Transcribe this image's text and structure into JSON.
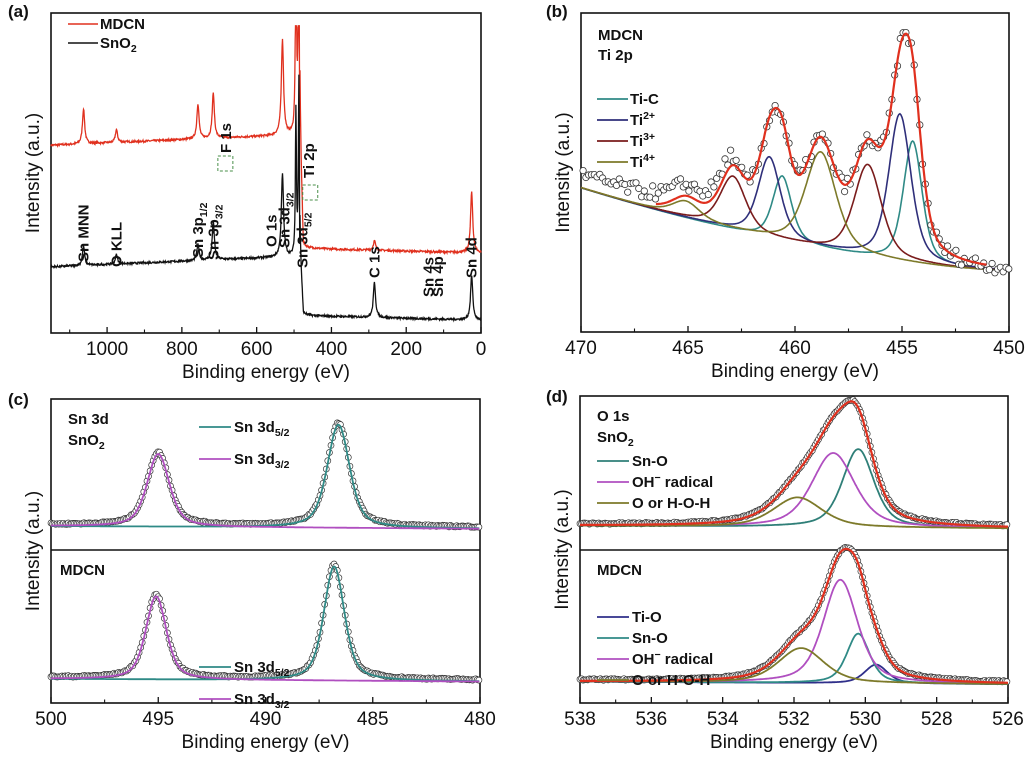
{
  "chart_data": [
    {
      "id": "a",
      "panel_label": "(a)",
      "type": "line",
      "title": "",
      "xlabel": "Binding energy (eV)",
      "ylabel": "Intensity (a.u.)",
      "xlim": [
        1150,
        0
      ],
      "xticks": [
        1000,
        800,
        600,
        400,
        200,
        0
      ],
      "xtick_labels": [
        "1000",
        "800",
        "600",
        "400",
        "200",
        "0"
      ],
      "legend": {
        "position": "top-left",
        "entries": [
          {
            "name": "MDCN",
            "color": "#e0301e"
          },
          {
            "name": "SnO2",
            "name_base": "SnO",
            "name_sub": "2",
            "color": "#111111"
          }
        ]
      },
      "series": [
        {
          "name": "MDCN",
          "color": "#e0301e",
          "baseline_high": 0.62,
          "baseline_low": 0.25,
          "step_energy": 485,
          "peaks": [
            {
              "x": 1063,
              "h": 0.11
            },
            {
              "x": 975,
              "h": 0.04
            },
            {
              "x": 757,
              "h": 0.11
            },
            {
              "x": 716,
              "h": 0.14
            },
            {
              "x": 531,
              "h": 0.3
            },
            {
              "x": 495,
              "h": 0.7
            },
            {
              "x": 487,
              "h": 0.93
            },
            {
              "x": 285,
              "h": 0.03
            },
            {
              "x": 25,
              "h": 0.19
            }
          ]
        },
        {
          "name": "SnO2",
          "color": "#111111",
          "baseline_high": 0.24,
          "baseline_low": 0.04,
          "step_energy": 485,
          "peaks": [
            {
              "x": 1063,
              "h": 0.06
            },
            {
              "x": 975,
              "h": 0.03
            },
            {
              "x": 757,
              "h": 0.05
            },
            {
              "x": 716,
              "h": 0.12
            },
            {
              "x": 531,
              "h": 0.26
            },
            {
              "x": 495,
              "h": 0.45
            },
            {
              "x": 487,
              "h": 0.55
            },
            {
              "x": 285,
              "h": 0.11
            },
            {
              "x": 25,
              "h": 0.14
            }
          ]
        }
      ],
      "annotations": [
        {
          "text": "Sn MNN",
          "x": 1063
        },
        {
          "text": "O KLL",
          "x": 975
        },
        {
          "text": "Sn 3p",
          "sub": "1/2",
          "x": 757
        },
        {
          "text": "Sn 3p",
          "sub": "3/2",
          "x": 716
        },
        {
          "text": "O 1s",
          "x": 560
        },
        {
          "text": "Sn 3d",
          "sub": "3/2",
          "x": 526
        },
        {
          "text": "Sn 3d",
          "sub": "5/2",
          "x": 478
        },
        {
          "text": "C 1s",
          "x": 285
        },
        {
          "text": "Sn 4s",
          "x": 140
        },
        {
          "text": "Sn 4p",
          "x": 115
        },
        {
          "text": "Sn 4d",
          "x": 25
        },
        {
          "text": "F 1s",
          "x": 682
        },
        {
          "text": "Ti 2p",
          "x": 460
        }
      ],
      "highlight_boxes": [
        {
          "label": "F 1s",
          "x": 685
        },
        {
          "label": "Ti 2p",
          "x": 458
        }
      ]
    },
    {
      "id": "b",
      "panel_label": "(b)",
      "type": "line",
      "title": "MDCN Ti 2p",
      "title_lines": [
        "MDCN",
        "Ti 2p"
      ],
      "xlabel": "Binding energy (eV)",
      "ylabel": "Intensity (a.u.)",
      "xlim": [
        470,
        450
      ],
      "xticks": [
        470,
        465,
        460,
        455,
        450
      ],
      "xtick_labels": [
        "470",
        "465",
        "460",
        "455",
        "450"
      ],
      "legend": {
        "position": "upper-left",
        "entries": [
          {
            "name": "Ti-C",
            "base": "Ti-C",
            "sup": "",
            "color": "#2f8a86"
          },
          {
            "name": "Ti2+",
            "base": "Ti",
            "sup": "2+",
            "color": "#2f2f7a"
          },
          {
            "name": "Ti3+",
            "base": "Ti",
            "sup": "3+",
            "color": "#7a1c1c"
          },
          {
            "name": "Ti4+",
            "base": "Ti",
            "sup": "4+",
            "color": "#7d7a2a"
          }
        ]
      },
      "background": {
        "start": 0.4,
        "end": 0.04
      },
      "components": [
        {
          "name": "Ti-C",
          "color": "#2f8a86",
          "peaks": [
            {
              "x": 454.5,
              "h": 0.53,
              "w": 0.55
            },
            {
              "x": 460.6,
              "h": 0.28,
              "w": 0.55
            }
          ]
        },
        {
          "name": "Ti2+",
          "color": "#2f2f7a",
          "peaks": [
            {
              "x": 455.1,
              "h": 0.64,
              "w": 0.65
            },
            {
              "x": 461.2,
              "h": 0.35,
              "w": 0.65
            }
          ]
        },
        {
          "name": "Ti3+",
          "color": "#7a1c1c",
          "peaks": [
            {
              "x": 456.6,
              "h": 0.4,
              "w": 0.8
            },
            {
              "x": 462.9,
              "h": 0.23,
              "w": 0.75
            }
          ]
        },
        {
          "name": "Ti4+",
          "color": "#7d7a2a",
          "peaks": [
            {
              "x": 458.8,
              "h": 0.42,
              "w": 0.9
            },
            {
              "x": 465.1,
              "h": 0.07,
              "w": 0.8
            }
          ]
        }
      ],
      "envelope_color": "#e0301e",
      "data_points_style": "open-circle",
      "ylim": [
        0,
        1
      ]
    },
    {
      "id": "c",
      "panel_label": "(c)",
      "type": "line",
      "xlabel": "Binding energy (eV)",
      "ylabel": "Intensity (a.u.)",
      "xlim": [
        500,
        480
      ],
      "xticks": [
        500,
        495,
        490,
        485,
        480
      ],
      "xtick_labels": [
        "500",
        "495",
        "490",
        "485",
        "480"
      ],
      "subpanels": [
        {
          "name": "SnO2",
          "title_lines": [
            "Sn 3d",
            "SnO2"
          ],
          "title_sub": true,
          "legend": [
            {
              "name": "Sn 3d5/2",
              "base": "Sn 3d",
              "sub": "5/2",
              "color": "#2f8a86"
            },
            {
              "name": "Sn 3d3/2",
              "base": "Sn 3d",
              "sub": "3/2",
              "color": "#b04fc0"
            }
          ],
          "components": [
            {
              "name": "Sn 3d5/2",
              "color": "#2f8a86",
              "x": 486.6,
              "h": 0.78,
              "w": 0.65
            },
            {
              "name": "Sn 3d3/2",
              "color": "#b04fc0",
              "x": 495.0,
              "h": 0.55,
              "w": 0.65
            }
          ],
          "baseline": 0.12
        },
        {
          "name": "MDCN",
          "title_lines": [
            "MDCN"
          ],
          "legend": [
            {
              "name": "Sn 3d5/2",
              "base": "Sn 3d",
              "sub": "5/2",
              "color": "#2f8a86"
            },
            {
              "name": "Sn 3d3/2",
              "base": "Sn 3d",
              "sub": "3/2",
              "color": "#b04fc0"
            }
          ],
          "components": [
            {
              "name": "Sn 3d5/2",
              "color": "#2f8a86",
              "x": 486.8,
              "h": 0.85,
              "w": 0.6
            },
            {
              "name": "Sn 3d3/2",
              "color": "#b04fc0",
              "x": 495.1,
              "h": 0.62,
              "w": 0.6
            }
          ],
          "baseline": 0.12
        }
      ]
    },
    {
      "id": "d",
      "panel_label": "(d)",
      "type": "line",
      "xlabel": "Binding energy (eV)",
      "ylabel": "Intensity (a.u.)",
      "xlim": [
        538,
        526
      ],
      "xticks": [
        538,
        536,
        534,
        532,
        530,
        528,
        526
      ],
      "xtick_labels": [
        "538",
        "536",
        "534",
        "532",
        "530",
        "528",
        "526"
      ],
      "subpanels": [
        {
          "name": "SnO2",
          "title_lines": [
            "O 1s",
            "SnO2"
          ],
          "legend": [
            {
              "name": "Sn-O",
              "color": "#2f7f78"
            },
            {
              "name": "OH⁻ radical",
              "base": "OH",
              "sup": "−",
              "rest": " radical",
              "color": "#b04fc0"
            },
            {
              "name": "O or H-O-H",
              "color": "#7d7a2a"
            }
          ],
          "components": [
            {
              "name": "Sn-O",
              "color": "#2f7f78",
              "x": 530.2,
              "h": 0.58,
              "w": 0.55
            },
            {
              "name": "OH⁻ radical",
              "color": "#b04fc0",
              "x": 530.9,
              "h": 0.55,
              "w": 0.75
            },
            {
              "name": "O or H-O-H",
              "color": "#7d7a2a",
              "x": 531.9,
              "h": 0.22,
              "w": 0.85
            }
          ],
          "baseline": 0.12,
          "envelope_color": "#e0301e"
        },
        {
          "name": "MDCN",
          "title_lines": [
            "MDCN"
          ],
          "legend": [
            {
              "name": "Ti-O",
              "color": "#2f2f8a"
            },
            {
              "name": "Sn-O",
              "color": "#2f8a86"
            },
            {
              "name": "OH⁻ radical",
              "base": "OH",
              "sup": "−",
              "rest": " radical",
              "color": "#b04fc0"
            },
            {
              "name": "O or H-O-H",
              "color": "#7d7a2a"
            }
          ],
          "components": [
            {
              "name": "Ti-O",
              "color": "#2f2f8a",
              "x": 529.7,
              "h": 0.14,
              "w": 0.4
            },
            {
              "name": "Sn-O",
              "color": "#2f8a86",
              "x": 530.2,
              "h": 0.37,
              "w": 0.4
            },
            {
              "name": "OH⁻ radical",
              "color": "#b04fc0",
              "x": 530.7,
              "h": 0.77,
              "w": 0.6
            },
            {
              "name": "O or H-O-H",
              "color": "#7d7a2a",
              "x": 531.8,
              "h": 0.26,
              "w": 0.8
            }
          ],
          "baseline": 0.1,
          "envelope_color": "#e0301e"
        }
      ]
    }
  ]
}
